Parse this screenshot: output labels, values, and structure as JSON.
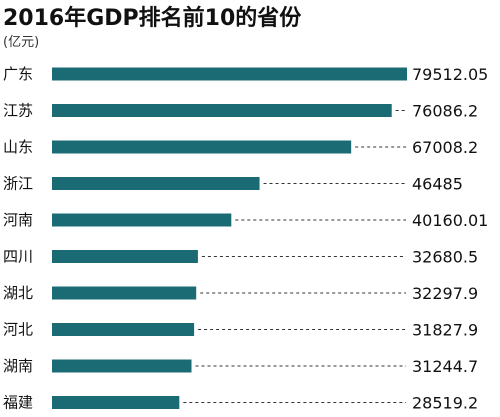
{
  "chart_data": {
    "type": "bar",
    "orientation": "horizontal",
    "title": "2016年GDP排名前10的省份",
    "unit_label": "(亿元)",
    "categories": [
      "广东",
      "江苏",
      "山东",
      "浙江",
      "河南",
      "四川",
      "湖北",
      "河北",
      "湖南",
      "福建"
    ],
    "values": [
      79512.05,
      76086.2,
      67008.2,
      46485,
      40160.01,
      32680.5,
      32297.9,
      31827.9,
      31244.7,
      28519.2
    ],
    "value_labels": [
      "79512.05",
      "76086.2",
      "67008.2",
      "46485",
      "40160.01",
      "32680.5",
      "32297.9",
      "31827.9",
      "31244.7",
      "28519.2"
    ],
    "bar_color": "#1b6b74",
    "leader_lines": "dashed",
    "legend": "none",
    "grid": false
  }
}
